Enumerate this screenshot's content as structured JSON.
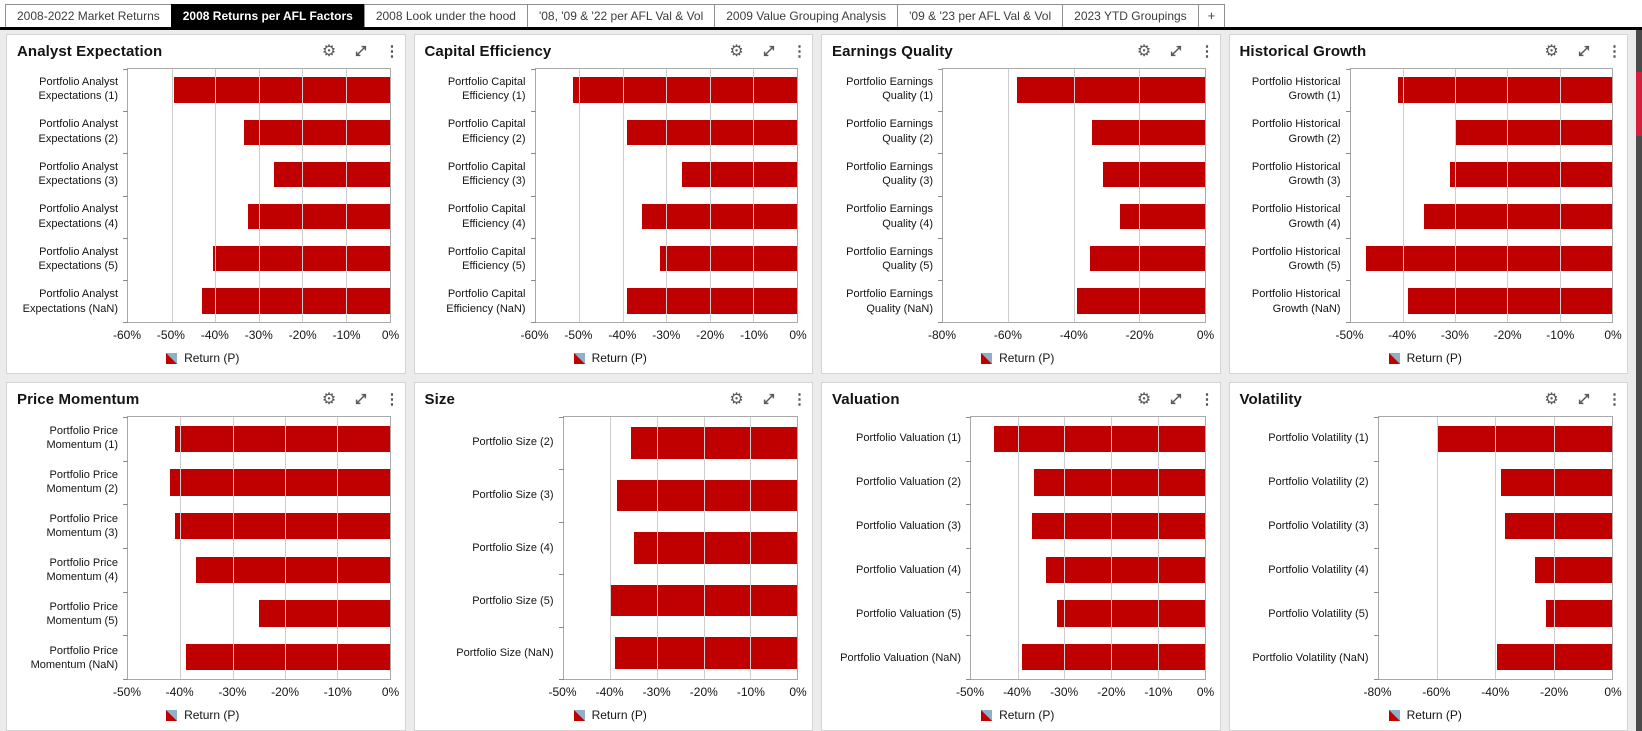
{
  "tabs": {
    "items": [
      {
        "label": "2008-2022 Market Returns",
        "active": false
      },
      {
        "label": "2008 Returns per AFL Factors",
        "active": true
      },
      {
        "label": "2008 Look under the hood",
        "active": false
      },
      {
        "label": "'08, '09 & '22 per AFL Val & Vol",
        "active": false
      },
      {
        "label": "2009 Value Grouping Analysis",
        "active": false
      },
      {
        "label": "'09 & '23 per AFL Val & Vol",
        "active": false
      },
      {
        "label": "2023 YTD Groupings",
        "active": false
      }
    ],
    "add_label": "+"
  },
  "icons": {
    "settings_glyph": "⚙",
    "kebab_glyph": "⋮",
    "expand_icon_name": "expand-diagonal-arrows"
  },
  "colors": {
    "bar_red": "#c00000",
    "legend_swatch_blue": "#8cb2c9",
    "tab_active_bg": "#000000",
    "page_bg": "#ececec",
    "scroll_strip_bg": "#4a4a4a",
    "scroll_thumb_red": "#d2203c",
    "icon_gray": "#595959"
  },
  "chart_data": [
    {
      "type": "bar",
      "title": "Analyst Expectation",
      "categories": [
        "Portfolio Analyst Expectations (1)",
        "Portfolio Analyst Expectations (2)",
        "Portfolio Analyst Expectations (3)",
        "Portfolio Analyst Expectations (4)",
        "Portfolio Analyst Expectations (5)",
        "Portfolio Analyst Expectations (NaN)"
      ],
      "values": [
        -49.5,
        -33.5,
        -26.5,
        -32.5,
        -40.5,
        -43
      ],
      "xlim": [
        -60,
        0
      ],
      "xticks": [
        -60,
        -50,
        -40,
        -30,
        -20,
        -10,
        0
      ],
      "legend": "Return (P)",
      "grid": true
    },
    {
      "type": "bar",
      "title": "Capital Efficiency",
      "categories": [
        "Portfolio Capital Efficiency (1)",
        "Portfolio Capital Efficiency (2)",
        "Portfolio Capital Efficiency (3)",
        "Portfolio Capital Efficiency (4)",
        "Portfolio Capital Efficiency (5)",
        "Portfolio Capital Efficiency (NaN)"
      ],
      "values": [
        -51.5,
        -39,
        -26.5,
        -35.5,
        -31.5,
        -39
      ],
      "xlim": [
        -60,
        0
      ],
      "xticks": [
        -60,
        -50,
        -40,
        -30,
        -20,
        -10,
        0
      ],
      "legend": "Return (P)",
      "grid": true
    },
    {
      "type": "bar",
      "title": "Earnings Quality",
      "categories": [
        "Portfolio Earnings Quality (1)",
        "Portfolio Earnings Quality (2)",
        "Portfolio Earnings Quality (3)",
        "Portfolio Earnings Quality (4)",
        "Portfolio Earnings Quality (5)",
        "Portfolio Earnings Quality (NaN)"
      ],
      "values": [
        -57.5,
        -34.5,
        -31,
        -26,
        -35,
        -39
      ],
      "xlim": [
        -80,
        0
      ],
      "xticks": [
        -80,
        -60,
        -40,
        -20,
        0
      ],
      "legend": "Return (P)",
      "grid": true
    },
    {
      "type": "bar",
      "title": "Historical Growth",
      "categories": [
        "Portfolio Historical Growth (1)",
        "Portfolio Historical Growth (2)",
        "Portfolio Historical Growth (3)",
        "Portfolio Historical Growth (4)",
        "Portfolio Historical Growth (5)",
        "Portfolio Historical Growth (NaN)"
      ],
      "values": [
        -41,
        -30,
        -31,
        -36,
        -47,
        -39
      ],
      "xlim": [
        -50,
        0
      ],
      "xticks": [
        -50,
        -40,
        -30,
        -20,
        -10,
        0
      ],
      "legend": "Return (P)",
      "grid": true
    },
    {
      "type": "bar",
      "title": "Price Momentum",
      "categories": [
        "Portfolio Price Momentum (1)",
        "Portfolio Price Momentum (2)",
        "Portfolio Price Momentum (3)",
        "Portfolio Price Momentum (4)",
        "Portfolio Price Momentum (5)",
        "Portfolio Price Momentum (NaN)"
      ],
      "values": [
        -41,
        -42,
        -41,
        -37,
        -25,
        -39
      ],
      "xlim": [
        -50,
        0
      ],
      "xticks": [
        -50,
        -40,
        -30,
        -20,
        -10,
        0
      ],
      "legend": "Return (P)",
      "grid": true
    },
    {
      "type": "bar",
      "title": "Size",
      "categories": [
        "Portfolio Size (2)",
        "Portfolio Size (3)",
        "Portfolio Size (4)",
        "Portfolio Size (5)",
        "Portfolio Size (NaN)"
      ],
      "values": [
        -35.5,
        -38.5,
        -35,
        -40,
        -39
      ],
      "xlim": [
        -50,
        0
      ],
      "xticks": [
        -50,
        -40,
        -30,
        -20,
        -10,
        0
      ],
      "legend": "Return (P)",
      "grid": true
    },
    {
      "type": "bar",
      "title": "Valuation",
      "categories": [
        "Portfolio Valuation (1)",
        "Portfolio Valuation (2)",
        "Portfolio Valuation (3)",
        "Portfolio Valuation (4)",
        "Portfolio Valuation (5)",
        "Portfolio Valuation (NaN)"
      ],
      "values": [
        -45,
        -36.5,
        -37,
        -34,
        -31.5,
        -39
      ],
      "xlim": [
        -50,
        0
      ],
      "xticks": [
        -50,
        -40,
        -30,
        -20,
        -10,
        0
      ],
      "legend": "Return (P)",
      "grid": true
    },
    {
      "type": "bar",
      "title": "Volatility",
      "categories": [
        "Portfolio Volatility (1)",
        "Portfolio Volatility (2)",
        "Portfolio Volatility (3)",
        "Portfolio Volatility (4)",
        "Portfolio Volatility (5)",
        "Portfolio Volatility (NaN)"
      ],
      "values": [
        -60,
        -38,
        -36.5,
        -26.5,
        -22.5,
        -39.5
      ],
      "xlim": [
        -80,
        0
      ],
      "xticks": [
        -80,
        -60,
        -40,
        -20,
        0
      ],
      "legend": "Return (P)",
      "grid": true
    }
  ]
}
